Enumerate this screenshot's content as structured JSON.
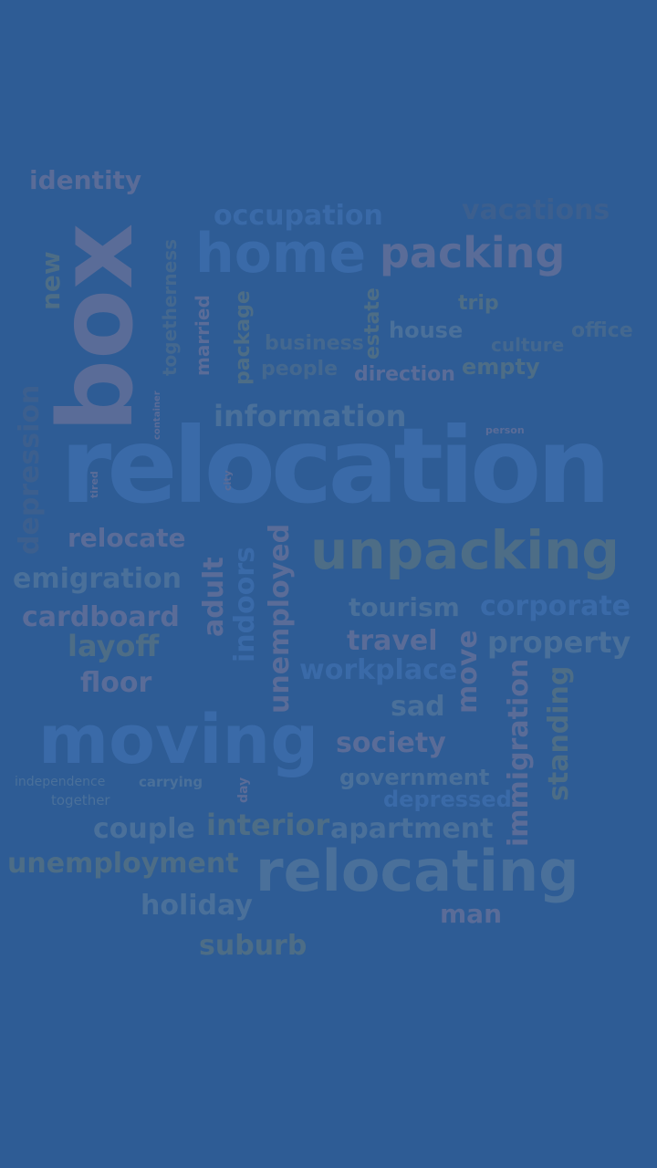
{
  "words": {
    "identity": "identity",
    "box": "box",
    "new": "new",
    "togetherness": "togetherness",
    "occupation": "occupation",
    "vacations": "vacations",
    "home": "home",
    "packing": "packing",
    "married": "married",
    "package": "package",
    "estate": "estate",
    "trip": "trip",
    "house": "house",
    "business": "business",
    "culture": "culture",
    "office": "office",
    "people": "people",
    "direction": "direction",
    "empty": "empty",
    "container": "container",
    "depression": "depression",
    "information": "information",
    "person": "person",
    "relocation": "relocation",
    "tired": "tired",
    "city": "city",
    "relocate": "relocate",
    "unpacking": "unpacking",
    "emigration": "emigration",
    "adult": "adult",
    "indoors": "indoors",
    "unemployed": "unemployed",
    "cardboard": "cardboard",
    "tourism": "tourism",
    "corporate": "corporate",
    "layoff": "layoff",
    "travel": "travel",
    "move": "move",
    "property": "property",
    "floor": "floor",
    "workplace": "workplace",
    "immigration": "immigration",
    "standing": "standing",
    "sad": "sad",
    "moving": "moving",
    "society": "society",
    "independence": "independence",
    "carrying": "carrying",
    "day": "day",
    "government": "government",
    "together": "together",
    "depressed": "depressed",
    "couple": "couple",
    "interior": "interior",
    "apartment": "apartment",
    "unemployment": "unemployment",
    "relocating": "relocating",
    "holiday": "holiday",
    "man": "man",
    "suburb": "suburb"
  }
}
